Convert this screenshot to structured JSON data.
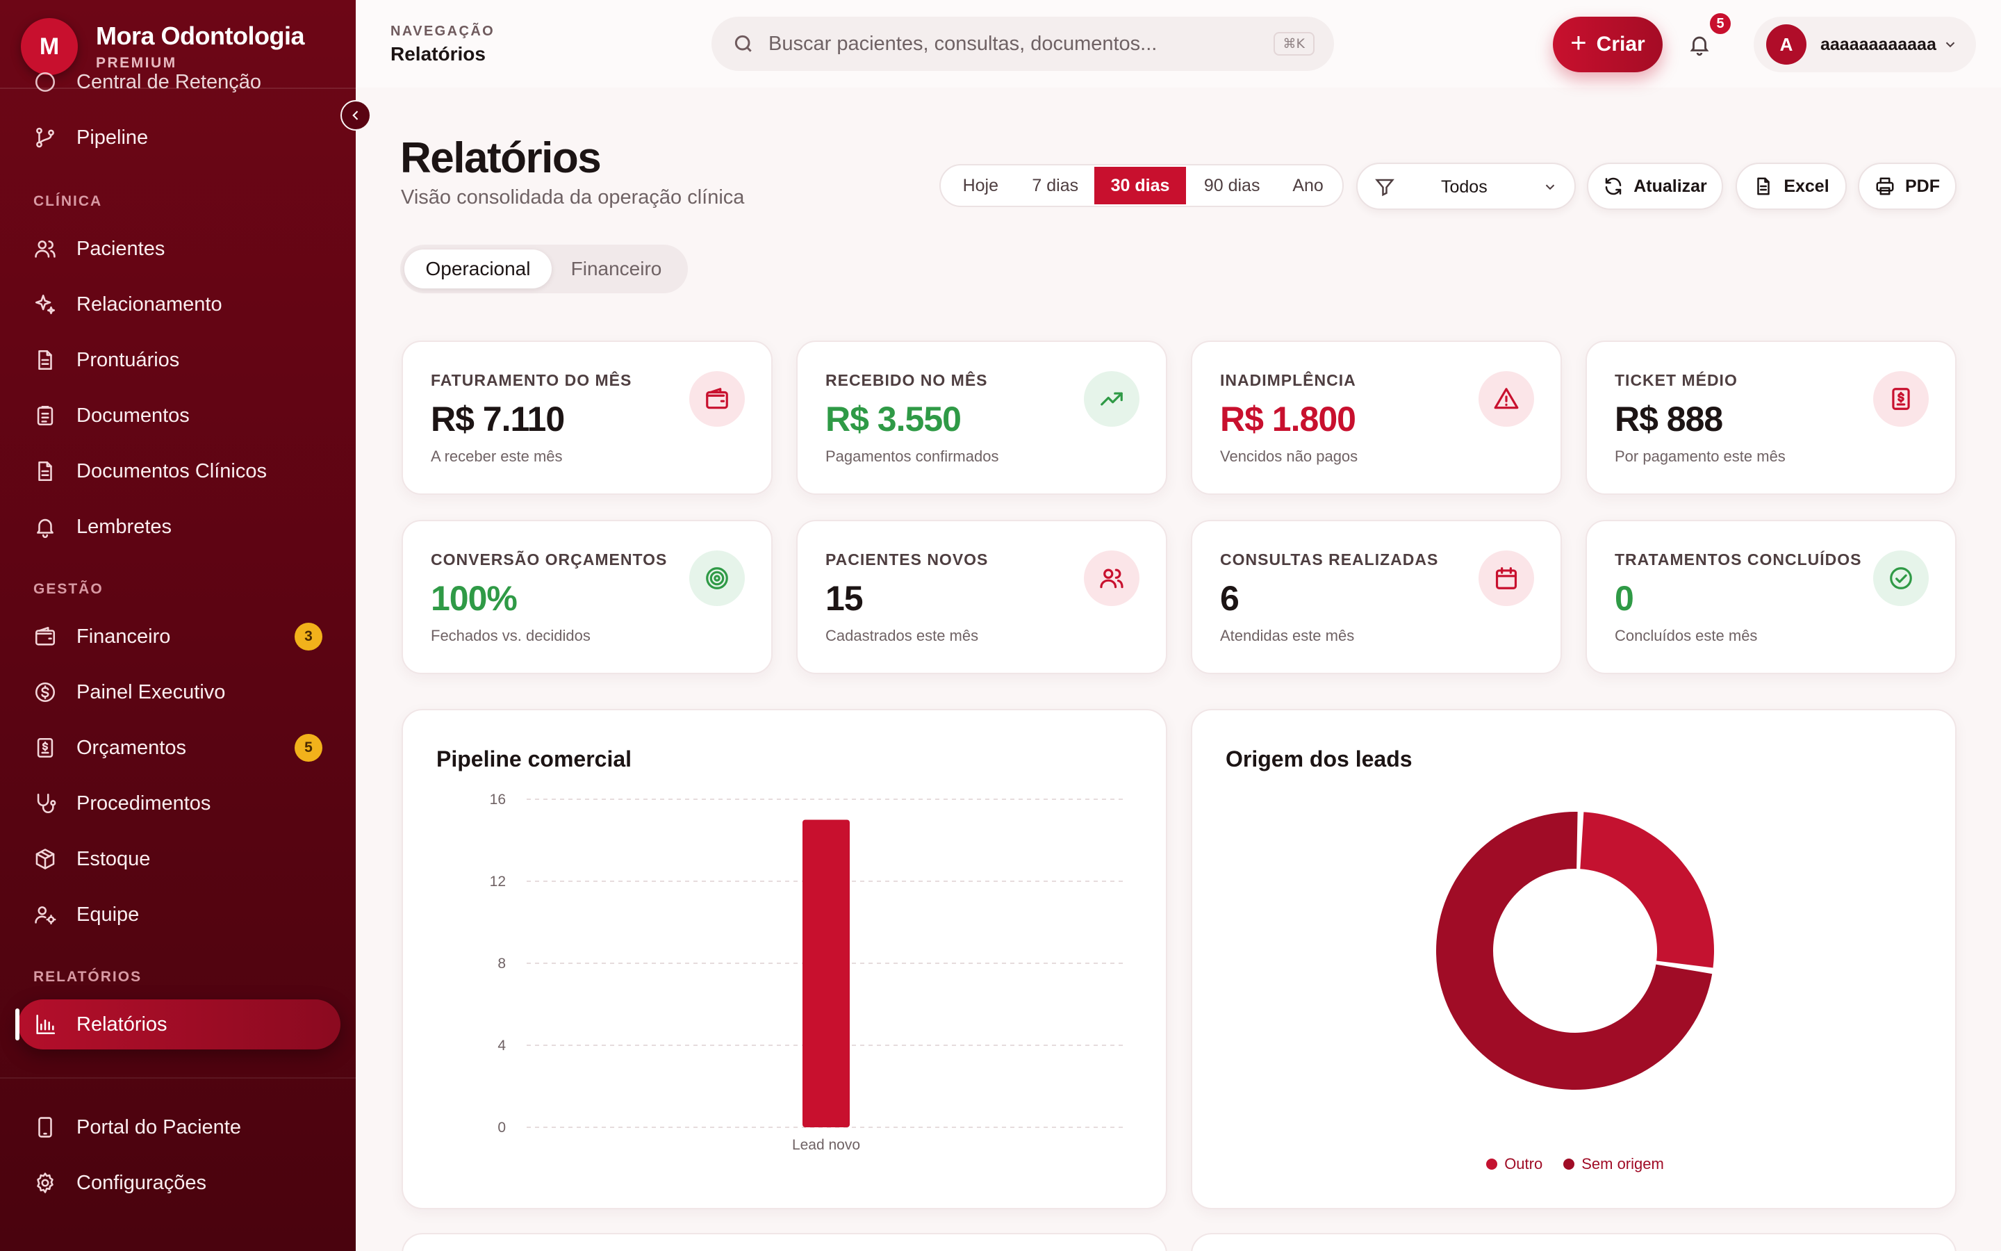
{
  "brand": {
    "initial": "M",
    "name": "Mora Odontologia",
    "tier": "PREMIUM"
  },
  "sidebar": {
    "partial_item": "Central de Retenção",
    "pipeline": "Pipeline",
    "sections": {
      "clinica": "CLÍNICA",
      "gestao": "GESTÃO",
      "relatorios": "RELATÓRIOS"
    },
    "clinica_items": [
      "Pacientes",
      "Relacionamento",
      "Prontuários",
      "Documentos",
      "Documentos Clínicos",
      "Lembretes"
    ],
    "gestao_items": [
      {
        "label": "Financeiro",
        "badge": "3"
      },
      {
        "label": "Painel Executivo",
        "badge": ""
      },
      {
        "label": "Orçamentos",
        "badge": "5"
      },
      {
        "label": "Procedimentos",
        "badge": ""
      },
      {
        "label": "Estoque",
        "badge": ""
      },
      {
        "label": "Equipe",
        "badge": ""
      }
    ],
    "relatorios_item": "Relatórios",
    "footer_items": [
      "Portal do Paciente",
      "Configurações"
    ]
  },
  "topbar": {
    "kicker": "NAVEGAÇÃO",
    "title": "Relatórios",
    "search_placeholder": "Buscar pacientes, consultas, documentos...",
    "search_shortcut": "⌘K",
    "create_label": "Criar",
    "notifications": "5",
    "user_initial": "A",
    "user_name": "aaaaaaaaaaaa"
  },
  "page": {
    "title": "Relatórios",
    "subtitle": "Visão consolidada da operação clínica",
    "periods": [
      "Hoje",
      "7 dias",
      "30 dias",
      "90 dias",
      "Ano"
    ],
    "active_period": "30 dias",
    "filter_value": "Todos",
    "actions": {
      "refresh": "Atualizar",
      "excel": "Excel",
      "pdf": "PDF"
    },
    "tabs": [
      "Operacional",
      "Financeiro"
    ],
    "active_tab": "Operacional"
  },
  "kpis": [
    {
      "label": "FATURAMENTO DO MÊS",
      "value": "R$ 7.110",
      "note": "A receber este mês",
      "value_color": "#1c1414",
      "icon": "wallet-icon",
      "tone": "red"
    },
    {
      "label": "RECEBIDO NO MÊS",
      "value": "R$ 3.550",
      "note": "Pagamentos confirmados",
      "value_color": "#2f9a46",
      "icon": "trending-up-icon",
      "tone": "green"
    },
    {
      "label": "INADIMPLÊNCIA",
      "value": "R$ 1.800",
      "note": "Vencidos não pagos",
      "value_color": "#c8102e",
      "icon": "alert-triangle-icon",
      "tone": "red"
    },
    {
      "label": "TICKET MÉDIO",
      "value": "R$ 888",
      "note": "Por pagamento este mês",
      "value_color": "#1c1414",
      "icon": "receipt-icon",
      "tone": "red"
    },
    {
      "label": "CONVERSÃO ORÇAMENTOS",
      "value": "100%",
      "note": "Fechados vs. decididos",
      "value_color": "#2f9a46",
      "icon": "target-icon",
      "tone": "green"
    },
    {
      "label": "PACIENTES NOVOS",
      "value": "15",
      "note": "Cadastrados este mês",
      "value_color": "#1c1414",
      "icon": "users-icon",
      "tone": "red"
    },
    {
      "label": "CONSULTAS REALIZADAS",
      "value": "6",
      "note": "Atendidas este mês",
      "value_color": "#1c1414",
      "icon": "calendar-icon",
      "tone": "red"
    },
    {
      "label": "TRATAMENTOS CONCLUÍDOS",
      "value": "0",
      "note": "Concluídos este mês",
      "value_color": "#2f9a46",
      "icon": "check-circle-icon",
      "tone": "green"
    }
  ],
  "chart_data": [
    {
      "type": "bar",
      "title": "Pipeline comercial",
      "categories": [
        "Lead novo"
      ],
      "values": [
        15
      ],
      "ylim": [
        0,
        16
      ],
      "yticks": [
        0,
        4,
        8,
        12,
        16
      ],
      "grid": true,
      "color": "#c8102e"
    },
    {
      "type": "pie",
      "title": "Origem dos leads",
      "donut": true,
      "labels": [
        "Outro",
        "Sem origem"
      ],
      "values": [
        4,
        11
      ],
      "colors": [
        "#c41230",
        "#a00c26"
      ],
      "legend": "bottom-center"
    }
  ],
  "colors": {
    "accent": "#c8102e",
    "sidebar": "#5a0412",
    "success": "#2f9a46"
  }
}
